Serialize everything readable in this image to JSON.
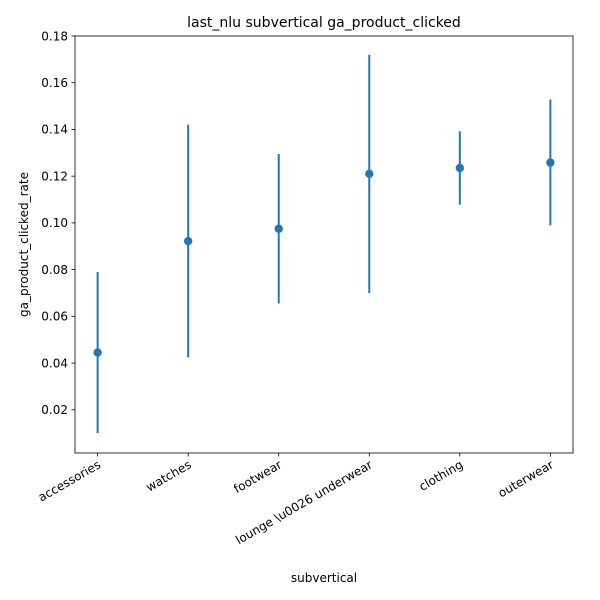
{
  "chart_data": {
    "type": "scatter",
    "title": "last_nlu subvertical ga_product_clicked",
    "xlabel": "subvertical",
    "ylabel": "ga_product_clicked_rate",
    "categories": [
      "accessories",
      "watches",
      "footwear",
      "lounge \\u0026 underwear",
      "clothing",
      "outerwear"
    ],
    "series": [
      {
        "values": [
          0.0445,
          0.0922,
          0.0975,
          0.121,
          0.1235,
          0.1258
        ],
        "lower": [
          0.01,
          0.0425,
          0.0655,
          0.07,
          0.1078,
          0.099
        ],
        "upper": [
          0.079,
          0.142,
          0.1295,
          0.172,
          0.1392,
          0.1528
        ],
        "color": "#1f77b4"
      }
    ],
    "ylim": [
      0.0015,
      0.18
    ],
    "yticks": [
      0.02,
      0.04,
      0.06,
      0.08,
      0.1,
      0.12,
      0.14,
      0.16,
      0.18
    ],
    "ytick_labels": [
      "0.02",
      "0.04",
      "0.06",
      "0.08",
      "0.10",
      "0.12",
      "0.14",
      "0.16",
      "0.18"
    ],
    "grid": false,
    "legend": "none"
  }
}
